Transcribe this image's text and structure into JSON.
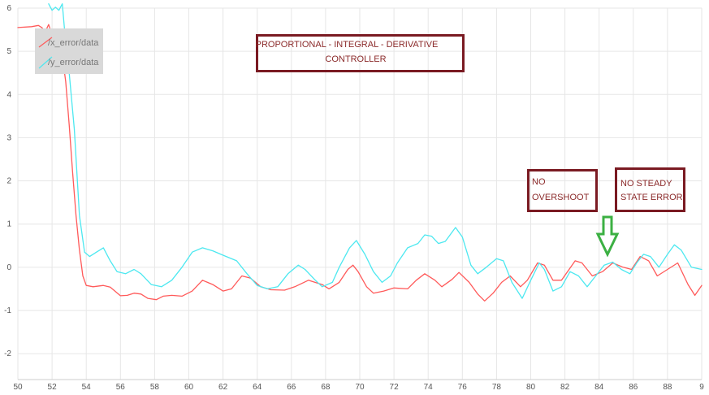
{
  "chart_data": {
    "type": "line",
    "xlim": [
      50,
      90
    ],
    "ylim": [
      -2.6,
      6
    ],
    "x_ticks": [
      "50",
      "52",
      "54",
      "56",
      "58",
      "60",
      "62",
      "64",
      "66",
      "68",
      "70",
      "72",
      "74",
      "76",
      "78",
      "80",
      "82",
      "84",
      "86",
      "88",
      "9"
    ],
    "y_ticks": [
      "6",
      "5",
      "4",
      "3",
      "2",
      "1",
      "0",
      "-1",
      "-2"
    ],
    "grid": true,
    "legend_position": "top-left",
    "series": [
      {
        "name": "/x_error/data",
        "color": "#ff5a5a",
        "points": [
          [
            50,
            5.55
          ],
          [
            50.8,
            5.57
          ],
          [
            51.2,
            5.6
          ],
          [
            51.4,
            5.55
          ],
          [
            51.6,
            5.45
          ],
          [
            51.8,
            5.62
          ],
          [
            52,
            5.38
          ],
          [
            52.2,
            5.5
          ],
          [
            52.4,
            5.25
          ],
          [
            52.6,
            4.9
          ],
          [
            52.8,
            4.3
          ],
          [
            53,
            3.3
          ],
          [
            53.2,
            2.2
          ],
          [
            53.4,
            1.2
          ],
          [
            53.6,
            0.4
          ],
          [
            53.8,
            -0.2
          ],
          [
            54,
            -0.42
          ],
          [
            54.4,
            -0.45
          ],
          [
            55,
            -0.42
          ],
          [
            55.4,
            -0.46
          ],
          [
            56,
            -0.66
          ],
          [
            56.4,
            -0.65
          ],
          [
            56.8,
            -0.6
          ],
          [
            57.2,
            -0.62
          ],
          [
            57.6,
            -0.72
          ],
          [
            58.1,
            -0.75
          ],
          [
            58.5,
            -0.67
          ],
          [
            59,
            -0.65
          ],
          [
            59.6,
            -0.67
          ],
          [
            60.2,
            -0.55
          ],
          [
            60.8,
            -0.3
          ],
          [
            61.4,
            -0.4
          ],
          [
            62,
            -0.55
          ],
          [
            62.5,
            -0.5
          ],
          [
            63.1,
            -0.2
          ],
          [
            63.6,
            -0.25
          ],
          [
            64.2,
            -0.45
          ],
          [
            64.8,
            -0.52
          ],
          [
            65.6,
            -0.53
          ],
          [
            66.2,
            -0.45
          ],
          [
            67,
            -0.3
          ],
          [
            67.8,
            -0.4
          ],
          [
            68.2,
            -0.5
          ],
          [
            68.8,
            -0.35
          ],
          [
            69.3,
            -0.05
          ],
          [
            69.6,
            0.05
          ],
          [
            69.9,
            -0.1
          ],
          [
            70.4,
            -0.45
          ],
          [
            70.8,
            -0.6
          ],
          [
            71.4,
            -0.55
          ],
          [
            72,
            -0.48
          ],
          [
            72.8,
            -0.5
          ],
          [
            73.3,
            -0.3
          ],
          [
            73.8,
            -0.15
          ],
          [
            74.4,
            -0.3
          ],
          [
            74.8,
            -0.45
          ],
          [
            75.4,
            -0.28
          ],
          [
            75.8,
            -0.12
          ],
          [
            76.4,
            -0.35
          ],
          [
            76.9,
            -0.62
          ],
          [
            77.3,
            -0.78
          ],
          [
            77.8,
            -0.6
          ],
          [
            78.3,
            -0.35
          ],
          [
            78.8,
            -0.2
          ],
          [
            79.4,
            -0.45
          ],
          [
            79.8,
            -0.3
          ],
          [
            80.4,
            0.1
          ],
          [
            80.8,
            0.05
          ],
          [
            81.3,
            -0.3
          ],
          [
            81.8,
            -0.3
          ],
          [
            82.6,
            0.15
          ],
          [
            83,
            0.1
          ],
          [
            83.6,
            -0.2
          ],
          [
            84.2,
            -0.1
          ],
          [
            84.8,
            0.1
          ],
          [
            85.4,
            0
          ],
          [
            85.9,
            -0.05
          ],
          [
            86.4,
            0.25
          ],
          [
            86.9,
            0.15
          ],
          [
            87.4,
            -0.2
          ],
          [
            88,
            -0.05
          ],
          [
            88.6,
            0.1
          ],
          [
            89.2,
            -0.4
          ],
          [
            89.6,
            -0.65
          ],
          [
            90,
            -0.42
          ]
        ]
      },
      {
        "name": "/y_error/data",
        "color": "#4de8f0",
        "points": [
          [
            51.8,
            6.1
          ],
          [
            52,
            5.95
          ],
          [
            52.2,
            6.02
          ],
          [
            52.4,
            5.95
          ],
          [
            52.6,
            6.1
          ],
          [
            52.8,
            5.2
          ],
          [
            53,
            4.5
          ],
          [
            53.3,
            3.2
          ],
          [
            53.6,
            1.2
          ],
          [
            53.9,
            0.35
          ],
          [
            54.2,
            0.25
          ],
          [
            54.6,
            0.35
          ],
          [
            55,
            0.45
          ],
          [
            55.4,
            0.15
          ],
          [
            55.8,
            -0.1
          ],
          [
            56.3,
            -0.15
          ],
          [
            56.8,
            -0.05
          ],
          [
            57.2,
            -0.15
          ],
          [
            57.8,
            -0.4
          ],
          [
            58.4,
            -0.45
          ],
          [
            59,
            -0.3
          ],
          [
            59.6,
            0
          ],
          [
            60.2,
            0.35
          ],
          [
            60.8,
            0.45
          ],
          [
            61.4,
            0.38
          ],
          [
            62,
            0.28
          ],
          [
            62.8,
            0.15
          ],
          [
            63.4,
            -0.15
          ],
          [
            64,
            -0.42
          ],
          [
            64.6,
            -0.5
          ],
          [
            65.2,
            -0.45
          ],
          [
            65.8,
            -0.15
          ],
          [
            66.4,
            0.05
          ],
          [
            66.8,
            -0.05
          ],
          [
            67.4,
            -0.3
          ],
          [
            67.8,
            -0.45
          ],
          [
            68.4,
            -0.35
          ],
          [
            68.8,
            0
          ],
          [
            69.4,
            0.45
          ],
          [
            69.8,
            0.62
          ],
          [
            70.3,
            0.3
          ],
          [
            70.8,
            -0.1
          ],
          [
            71.3,
            -0.35
          ],
          [
            71.8,
            -0.2
          ],
          [
            72.2,
            0.1
          ],
          [
            72.8,
            0.45
          ],
          [
            73.4,
            0.55
          ],
          [
            73.8,
            0.75
          ],
          [
            74.2,
            0.72
          ],
          [
            74.6,
            0.55
          ],
          [
            75,
            0.6
          ],
          [
            75.6,
            0.92
          ],
          [
            76,
            0.7
          ],
          [
            76.5,
            0.05
          ],
          [
            76.9,
            -0.15
          ],
          [
            77.4,
            0
          ],
          [
            78,
            0.2
          ],
          [
            78.4,
            0.15
          ],
          [
            78.9,
            -0.35
          ],
          [
            79.5,
            -0.72
          ],
          [
            80,
            -0.3
          ],
          [
            80.5,
            0.1
          ],
          [
            80.8,
            -0.05
          ],
          [
            81.3,
            -0.55
          ],
          [
            81.8,
            -0.45
          ],
          [
            82.3,
            -0.1
          ],
          [
            82.8,
            -0.2
          ],
          [
            83.3,
            -0.45
          ],
          [
            83.8,
            -0.2
          ],
          [
            84.3,
            0.05
          ],
          [
            84.8,
            0.12
          ],
          [
            85.3,
            -0.05
          ],
          [
            85.8,
            -0.15
          ],
          [
            86.2,
            0.1
          ],
          [
            86.6,
            0.3
          ],
          [
            87,
            0.25
          ],
          [
            87.5,
            0
          ],
          [
            88,
            0.3
          ],
          [
            88.4,
            0.52
          ],
          [
            88.8,
            0.4
          ],
          [
            89.4,
            0
          ],
          [
            90,
            -0.05
          ]
        ]
      }
    ],
    "annotations": [
      {
        "lines": [
          "PROPORTIONAL - INTEGRAL - DERIVATIVE",
          "CONTROLLER"
        ]
      },
      {
        "lines": [
          "NO",
          "OVERSHOOT"
        ]
      },
      {
        "lines": [
          "NO STEADY",
          "STATE ERROR"
        ]
      }
    ],
    "annotation_color": "#7a1a22",
    "arrow_color": "#3cb043",
    "arrow_target": [
      84.5,
      0.2
    ]
  }
}
